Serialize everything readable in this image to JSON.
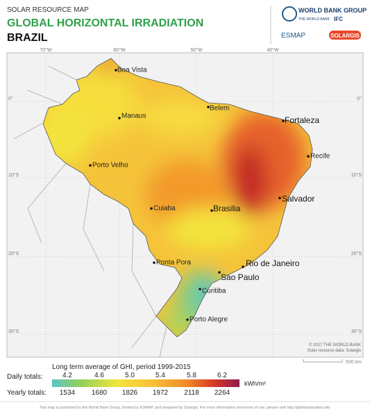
{
  "header": {
    "subtitle": "SOLAR RESOURCE MAP",
    "title": "GLOBAL HORIZONTAL IRRADIATION",
    "country": "BRAZIL"
  },
  "logos": {
    "wbg": "WORLD BANK GROUP",
    "wb": "THE WORLD BANK",
    "ifc": "IFC",
    "esmap": "ESMAP",
    "solargis": "SOLARGIS"
  },
  "map": {
    "lon_labels": [
      "70°W",
      "60°W",
      "50°W",
      "40°W"
    ],
    "lat_labels_left": [
      "0°",
      "10°S",
      "20°S",
      "30°S"
    ],
    "lat_labels_right": [
      "0°",
      "10°S",
      "20°S",
      "30°S"
    ],
    "cities": [
      "Boa Vista",
      "Manaus",
      "Belem",
      "Fortaleza",
      "Recife",
      "Porto Velho",
      "Salvador",
      "Cuiaba",
      "Brasilia",
      "Rio de Janeiro",
      "Ponta Pora",
      "Sao Paulo",
      "Curitiba",
      "Porto Alegre"
    ],
    "credits": [
      "© 2017 THE WORLD BANK",
      "Solar resource data: Solargis"
    ],
    "scale": "500 km"
  },
  "legend": {
    "title": "Long term average of GHI, period 1999-2015",
    "daily_label": "Daily totals:",
    "daily_values": [
      "4.2",
      "4.6",
      "5.0",
      "5.4",
      "5.8",
      "6.2"
    ],
    "unit": "kWh/m²",
    "yearly_label": "Yearly totals:",
    "yearly_values": [
      "1534",
      "1680",
      "1826",
      "1972",
      "2118",
      "2264"
    ]
  },
  "footer": "This map is published by the World Bank Group, funded by ESMAP, and prepared by Solargis. For more information and terms of use, please visit http://globalsolaratlas.info"
}
